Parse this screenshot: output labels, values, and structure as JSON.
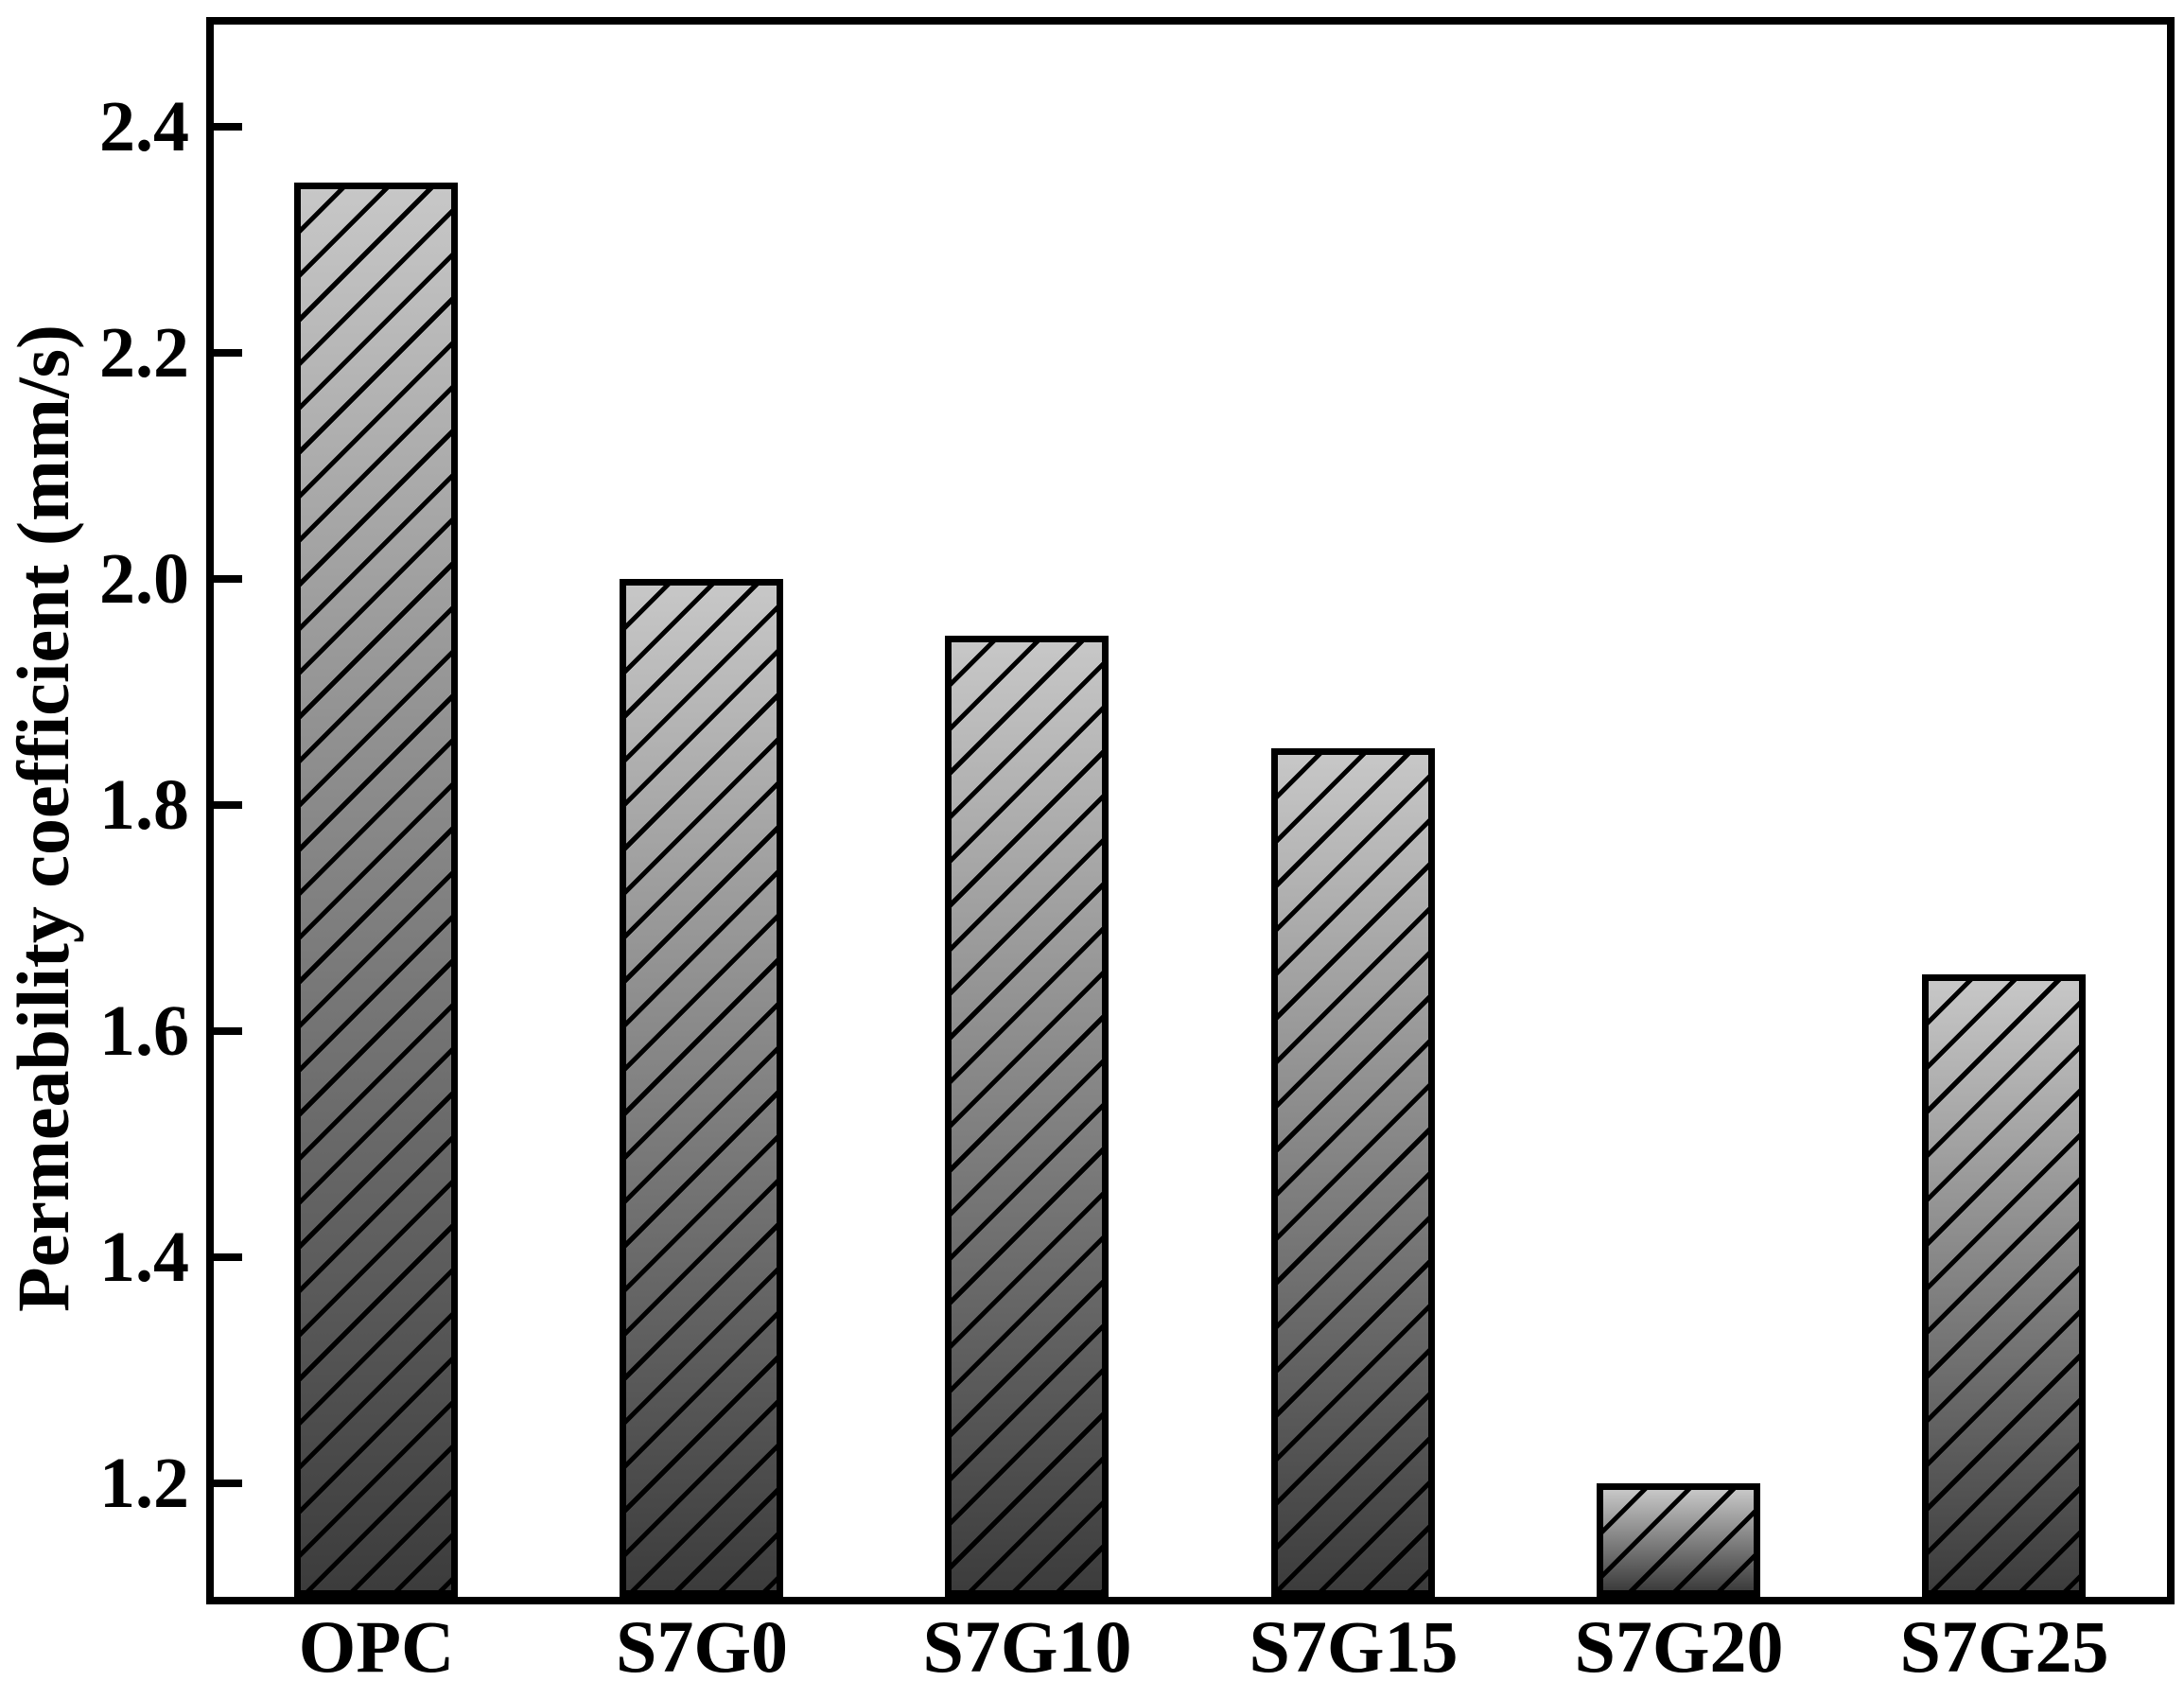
{
  "figure": {
    "background": "#ffffff",
    "frame_color": "#000000"
  },
  "chart_data": {
    "type": "bar",
    "title": "",
    "categories": [
      "OPC",
      "S7G0",
      "S7G10",
      "S7G15",
      "S7G20",
      "S7G25"
    ],
    "values": [
      2.35,
      2.0,
      1.95,
      1.85,
      1.2,
      1.65
    ],
    "xlabel": "",
    "ylabel": "Permeability coefficient (mm/s)",
    "ylim": [
      1.1,
      2.49
    ],
    "yticks": [
      2.4,
      2.2,
      2.0,
      1.8,
      1.6,
      1.4,
      1.2
    ],
    "ytick_labels": [
      "2.4",
      "2.2",
      "2.0",
      "1.8",
      "1.6",
      "1.4",
      "1.2"
    ],
    "grid": false,
    "legend": null,
    "tick_direction": "in",
    "bar_style": {
      "hatch": "forward-diagonal",
      "hatch_color": "#000000",
      "gradient_top": "#c7c7c7",
      "gradient_bottom": "#3c3c3c",
      "border_color": "#000000"
    }
  }
}
